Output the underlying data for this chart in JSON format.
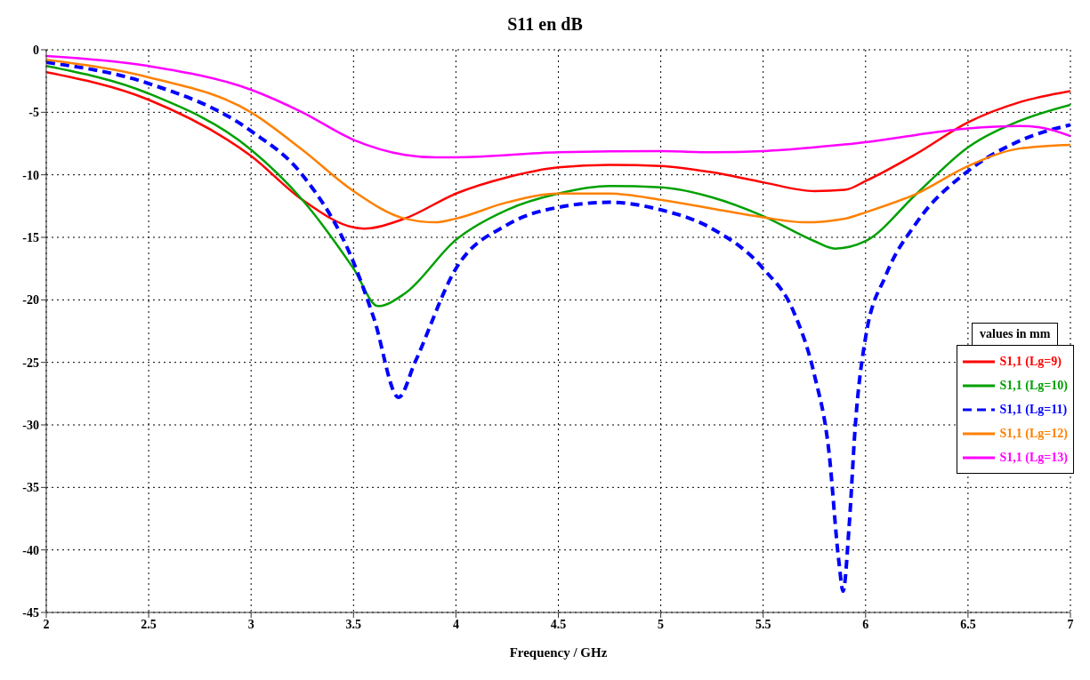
{
  "chart_data": {
    "type": "line",
    "title": "S11 en dB",
    "xlabel": "Frequency / GHz",
    "legend_title": "values in mm",
    "xlim": [
      2,
      7
    ],
    "xticks": [
      2,
      2.5,
      3,
      3.5,
      4,
      4.5,
      5,
      5.5,
      6,
      6.5,
      7
    ],
    "ylim": [
      -45,
      0
    ],
    "yticks": [
      -45,
      -40,
      -35,
      -30,
      -25,
      -20,
      -15,
      -10,
      -5,
      0
    ],
    "grid": true,
    "legend": "right",
    "marker": "none",
    "series": [
      {
        "name": "S1,1 (Lg=9)",
        "color": "#ff0000",
        "line_style": "solid",
        "x": [
          2,
          2.5,
          3,
          3.25,
          3.5,
          3.55,
          3.75,
          4,
          4.25,
          4.5,
          4.75,
          5,
          5.25,
          5.5,
          5.75,
          5.9,
          6,
          6.25,
          6.5,
          6.75,
          7
        ],
        "values": [
          -1.8,
          -4,
          -8.5,
          -12,
          -14.2,
          -14.3,
          -13.5,
          -11.5,
          -10.2,
          -9.4,
          -9.2,
          -9.3,
          -9.8,
          -10.6,
          -11.3,
          -11.2,
          -10.5,
          -8.3,
          -5.8,
          -4.2,
          -3.3
        ]
      },
      {
        "name": "S1,1 (Lg=10)",
        "color": "#00a000",
        "line_style": "solid",
        "x": [
          2,
          2.5,
          3,
          3.25,
          3.5,
          3.62,
          3.75,
          4,
          4.25,
          4.5,
          4.75,
          5,
          5.25,
          5.5,
          5.75,
          5.85,
          6,
          6.25,
          6.5,
          6.75,
          7
        ],
        "values": [
          -1.3,
          -3.5,
          -8,
          -12,
          -17.5,
          -20.5,
          -19.5,
          -15.2,
          -12.8,
          -11.5,
          -10.9,
          -11,
          -11.8,
          -13.3,
          -15.3,
          -15.9,
          -15.3,
          -11.5,
          -7.8,
          -5.7,
          -4.4
        ]
      },
      {
        "name": "S1,1 (Lg=11)",
        "color": "#0000ff",
        "line_style": "dashed",
        "x": [
          2,
          2.5,
          3,
          3.25,
          3.5,
          3.6,
          3.72,
          3.8,
          4,
          4.25,
          4.5,
          4.75,
          5,
          5.25,
          5.5,
          5.65,
          5.75,
          5.82,
          5.87,
          5.89,
          5.92,
          5.95,
          6,
          6.1,
          6.25,
          6.5,
          6.75,
          7
        ],
        "values": [
          -1,
          -2.7,
          -6.5,
          -10,
          -17,
          -21.5,
          -27.8,
          -25,
          -17.5,
          -14,
          -12.6,
          -12.2,
          -12.8,
          -14.3,
          -17.5,
          -21,
          -26,
          -32,
          -41,
          -43.3,
          -38,
          -30,
          -23,
          -18,
          -13.8,
          -9.7,
          -7.3,
          -6
        ]
      },
      {
        "name": "S1,1 (Lg=12)",
        "color": "#ff8000",
        "line_style": "solid",
        "x": [
          2,
          2.5,
          3,
          3.25,
          3.5,
          3.75,
          3.9,
          4,
          4.25,
          4.5,
          4.75,
          5,
          5.25,
          5.5,
          5.7,
          5.9,
          6,
          6.25,
          6.5,
          6.75,
          7
        ],
        "values": [
          -0.8,
          -2.2,
          -5,
          -8,
          -11.3,
          -13.5,
          -13.8,
          -13.5,
          -12.2,
          -11.5,
          -11.5,
          -12,
          -12.7,
          -13.4,
          -13.8,
          -13.5,
          -13,
          -11.5,
          -9.3,
          -7.9,
          -7.6
        ]
      },
      {
        "name": "S1,1 (Lg=13)",
        "color": "#ff00ff",
        "line_style": "solid",
        "x": [
          2,
          2.5,
          3,
          3.25,
          3.5,
          3.75,
          3.9,
          4,
          4.5,
          5,
          5.25,
          5.5,
          5.75,
          6,
          6.25,
          6.5,
          6.75,
          6.85,
          7
        ],
        "values": [
          -0.5,
          -1.3,
          -3.2,
          -5,
          -7.2,
          -8.4,
          -8.6,
          -8.6,
          -8.2,
          -8.1,
          -8.2,
          -8.1,
          -7.8,
          -7.4,
          -6.8,
          -6.3,
          -6.1,
          -6.2,
          -6.9
        ]
      }
    ]
  }
}
